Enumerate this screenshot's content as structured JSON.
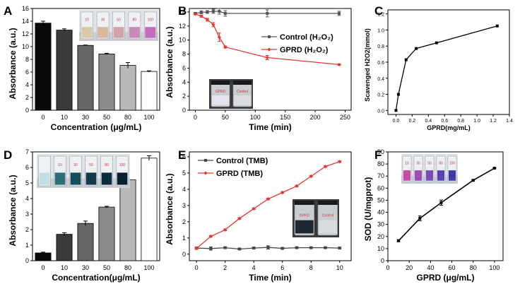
{
  "chart_data": [
    {
      "panel": "A",
      "type": "bar",
      "categories": [
        "0",
        "10",
        "30",
        "50",
        "80",
        "100"
      ],
      "values": [
        13.7,
        12.6,
        10.2,
        8.85,
        7.05,
        6.1
      ],
      "errors": [
        0.3,
        0.2,
        0.05,
        0.1,
        0.45,
        0.1
      ],
      "colors": [
        "#0a0a0a",
        "#3a3a3a",
        "#666666",
        "#8c8c8c",
        "#b9b9b9",
        "#ffffff"
      ],
      "ylabel": "Absorbance (a.u.)",
      "xlabel": "Concentration (μg/mL)",
      "ylim": [
        0,
        16
      ],
      "yticks": [
        "0",
        "2",
        "4",
        "6",
        "8",
        "10",
        "12",
        "14",
        "16"
      ]
    },
    {
      "panel": "B",
      "type": "line",
      "xlabel": "Time (min)",
      "ylabel": "Absorbance (a.u.)",
      "xlim": [
        -10,
        260
      ],
      "ylim": [
        0,
        14.5
      ],
      "xticks": [
        "0",
        "50",
        "100",
        "150",
        "200",
        "250"
      ],
      "yticks": [
        "0",
        "2",
        "4",
        "6",
        "8",
        "10",
        "12",
        "14"
      ],
      "series": [
        {
          "name": "Control",
          "suffix": "(H₂O₂)",
          "color": "#555555",
          "x": [
            0,
            10,
            20,
            30,
            40,
            50,
            120,
            240
          ],
          "y": [
            13.8,
            13.95,
            14.0,
            14.1,
            14.1,
            13.8,
            13.8,
            13.8
          ],
          "err": [
            0.1,
            0.2,
            0.2,
            0.3,
            0.4,
            0.4,
            0.5,
            0.3
          ]
        },
        {
          "name": "GPRD",
          "suffix": "(H₂O₂)",
          "color": "#e53935",
          "x": [
            0,
            10,
            20,
            30,
            40,
            50,
            120,
            240
          ],
          "y": [
            13.7,
            13.4,
            12.9,
            12.2,
            10.4,
            9.0,
            7.5,
            6.5
          ],
          "err": [
            0.1,
            0.15,
            0.2,
            0.3,
            0.6,
            0.15,
            0.3,
            0.1
          ]
        }
      ]
    },
    {
      "panel": "C",
      "type": "line",
      "xlabel": "GPRD(mg/mL)",
      "ylabel": "Scavenged H2O2(mmol)",
      "xlim": [
        -0.1,
        1.4
      ],
      "ylim": [
        -0.05,
        1.25
      ],
      "xticks": [
        "0.0",
        "0.2",
        "0.4",
        "0.6",
        "0.8",
        "1.0",
        "1.2",
        "1.4"
      ],
      "yticks": [
        "0.0",
        "0.2",
        "0.4",
        "0.6",
        "0.8",
        "1.0",
        "1.2"
      ],
      "series": [
        {
          "name": "GPRD",
          "color": "#000000",
          "x": [
            0.0,
            0.03,
            0.125,
            0.25,
            0.5,
            1.25
          ],
          "y": [
            0.0,
            0.2,
            0.63,
            0.77,
            0.84,
            1.05
          ]
        }
      ]
    },
    {
      "panel": "D",
      "type": "bar",
      "categories": [
        "0",
        "10",
        "30",
        "50",
        "80",
        "100"
      ],
      "values": [
        0.5,
        1.7,
        2.4,
        3.45,
        5.2,
        6.6
      ],
      "errors": [
        0.05,
        0.1,
        0.15,
        0.05,
        0.03,
        0.15
      ],
      "colors": [
        "#0a0a0a",
        "#3a3a3a",
        "#666666",
        "#8c8c8c",
        "#b9b9b9",
        "#ffffff"
      ],
      "ylabel": "Absorbance (a.u.)",
      "xlabel": "Concentration(μg/mL)",
      "ylim": [
        0,
        7
      ],
      "yticks": [
        "0",
        "1",
        "2",
        "3",
        "4",
        "5",
        "6",
        "7"
      ]
    },
    {
      "panel": "E",
      "type": "line",
      "xlabel": "Time (min)",
      "ylabel": "Absorbance (a.u.)",
      "xlim": [
        -0.5,
        10.8
      ],
      "ylim": [
        -0.4,
        6.3
      ],
      "xticks": [
        "0",
        "2",
        "4",
        "6",
        "8",
        "10"
      ],
      "yticks": [
        "0",
        "1",
        "2",
        "3",
        "4",
        "5",
        "6"
      ],
      "series": [
        {
          "name": "Control",
          "suffix": "(TMB)",
          "color": "#444444",
          "x": [
            0,
            1,
            2,
            3,
            4,
            5,
            6,
            7,
            8,
            9,
            10
          ],
          "y": [
            0.38,
            0.35,
            0.4,
            0.32,
            0.38,
            0.42,
            0.36,
            0.4,
            0.4,
            0.4,
            0.38
          ],
          "err": [
            0.05,
            0.1,
            0.05,
            0.05,
            0.05,
            0.1,
            0.05,
            0.05,
            0.05,
            0.05,
            0.05
          ]
        },
        {
          "name": "GPRD",
          "suffix": "(TMB)",
          "color": "#e53935",
          "x": [
            0,
            1,
            2,
            3,
            4,
            5,
            6,
            7,
            8,
            9,
            10
          ],
          "y": [
            0.35,
            1.1,
            1.5,
            2.2,
            2.8,
            3.4,
            3.8,
            4.2,
            4.8,
            5.4,
            5.7
          ],
          "err": [
            0.05,
            0.05,
            0.05,
            0.05,
            0.05,
            0.05,
            0.05,
            0.05,
            0.05,
            0.05,
            0.05
          ]
        }
      ]
    },
    {
      "panel": "F",
      "type": "line",
      "xlabel": "GPRD (μg/mL)",
      "ylabel": "SOD (U/mgprot)",
      "xlim": [
        0,
        108
      ],
      "ylim": [
        0,
        90
      ],
      "xticks": [
        "0",
        "20",
        "40",
        "60",
        "80",
        "100"
      ],
      "yticks": [
        "0",
        "10",
        "20",
        "30",
        "40",
        "50",
        "60",
        "70",
        "80",
        "90"
      ],
      "series": [
        {
          "name": "GPRD",
          "color": "#000000",
          "x": [
            10,
            30,
            50,
            80,
            100
          ],
          "y": [
            16.5,
            35,
            48,
            66.5,
            76.5
          ],
          "err": [
            0.8,
            2.0,
            2.2,
            0.5,
            0.4
          ]
        }
      ]
    }
  ],
  "insets": {
    "A": [
      "10",
      "30",
      "50",
      "80",
      "100"
    ],
    "B": [
      "GPRD",
      "Control"
    ],
    "D": [
      "10",
      "30",
      "50",
      "80",
      "100"
    ],
    "E": [
      "GPRD",
      "Control"
    ],
    "F": [
      "10",
      "30",
      "50",
      "80",
      "100"
    ]
  },
  "colors": {
    "red": "#e53935",
    "dark": "#000000",
    "gray": "#555555"
  }
}
